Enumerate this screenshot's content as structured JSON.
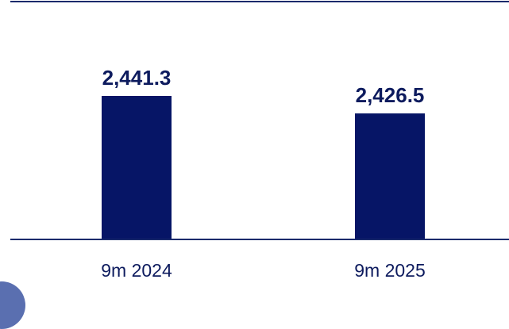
{
  "chart_data": {
    "type": "bar",
    "title": "",
    "xlabel": "",
    "ylabel": "",
    "categories": [
      "9m 2024",
      "9m 2025"
    ],
    "values": [
      2441.3,
      2426.5
    ],
    "value_labels": [
      "2,441.3",
      "2,426.5"
    ],
    "ylim": [
      2320,
      2460
    ],
    "grid": false,
    "legend": "none",
    "colors": {
      "bar": "#061566",
      "axis": "#1a2a6c",
      "label": "#0d1b5e"
    }
  }
}
